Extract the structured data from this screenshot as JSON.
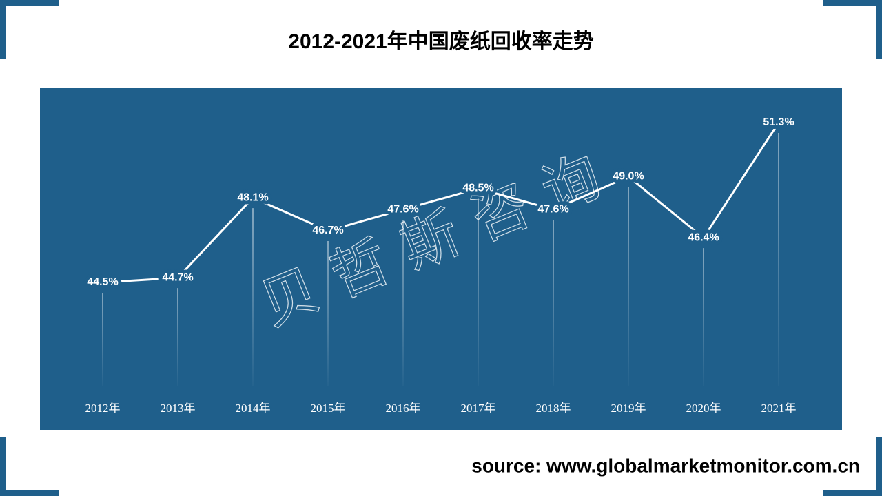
{
  "chart_data": {
    "type": "line",
    "title": "2012-2021年中国废纸回收率走势",
    "categories": [
      "2012年",
      "2013年",
      "2014年",
      "2015年",
      "2016年",
      "2017年",
      "2018年",
      "2019年",
      "2020年",
      "2021年"
    ],
    "values": [
      44.5,
      44.7,
      48.1,
      46.7,
      47.6,
      48.5,
      47.6,
      49.0,
      46.4,
      51.3
    ],
    "value_labels": [
      "44.5%",
      "44.7%",
      "48.1%",
      "46.7%",
      "47.6%",
      "48.5%",
      "47.6%",
      "49.0%",
      "46.4%",
      "51.3%"
    ],
    "color": "#ffffff",
    "watermark": "贝哲斯咨询",
    "source": "source: www.globalmarketmonitor.com.cn"
  }
}
